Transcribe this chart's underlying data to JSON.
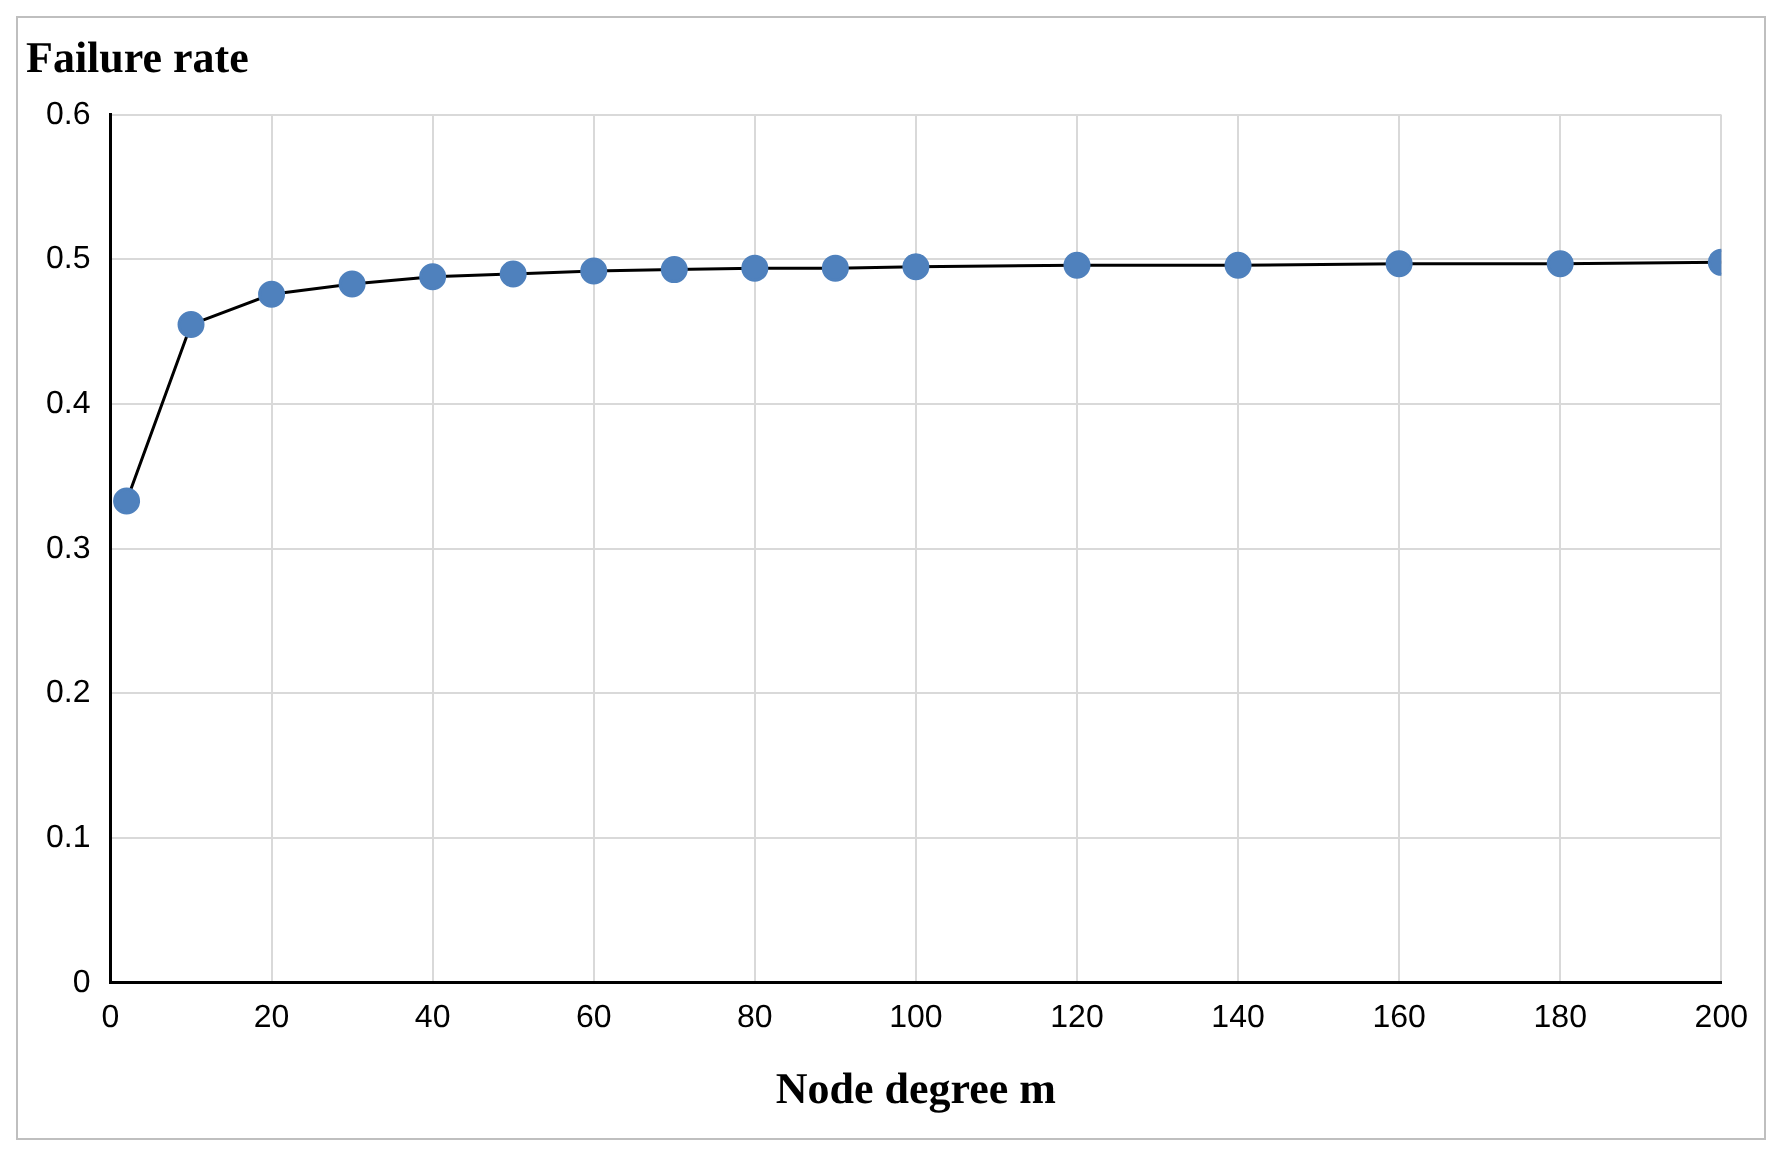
{
  "chart_data": {
    "type": "line",
    "ylabel": "Failure rate",
    "xlabel": "Node degree m",
    "x": [
      2,
      10,
      20,
      30,
      40,
      50,
      60,
      70,
      80,
      90,
      100,
      120,
      140,
      160,
      180,
      200
    ],
    "series": [
      {
        "color": "#4f81bd",
        "values": [
          0.333,
          0.455,
          0.476,
          0.483,
          0.488,
          0.49,
          0.492,
          0.493,
          0.494,
          0.494,
          0.495,
          0.496,
          0.496,
          0.497,
          0.497,
          0.498
        ]
      }
    ],
    "xlim": [
      0,
      200
    ],
    "xticks": [
      0,
      20,
      40,
      60,
      80,
      100,
      120,
      140,
      160,
      180,
      200
    ],
    "ylim": [
      0,
      0.6
    ],
    "yticks": [
      0,
      0.1,
      0.2,
      0.3,
      0.4,
      0.5,
      0.6
    ],
    "grid": true,
    "legend": false,
    "marker": "circle",
    "line_style": "solid"
  }
}
